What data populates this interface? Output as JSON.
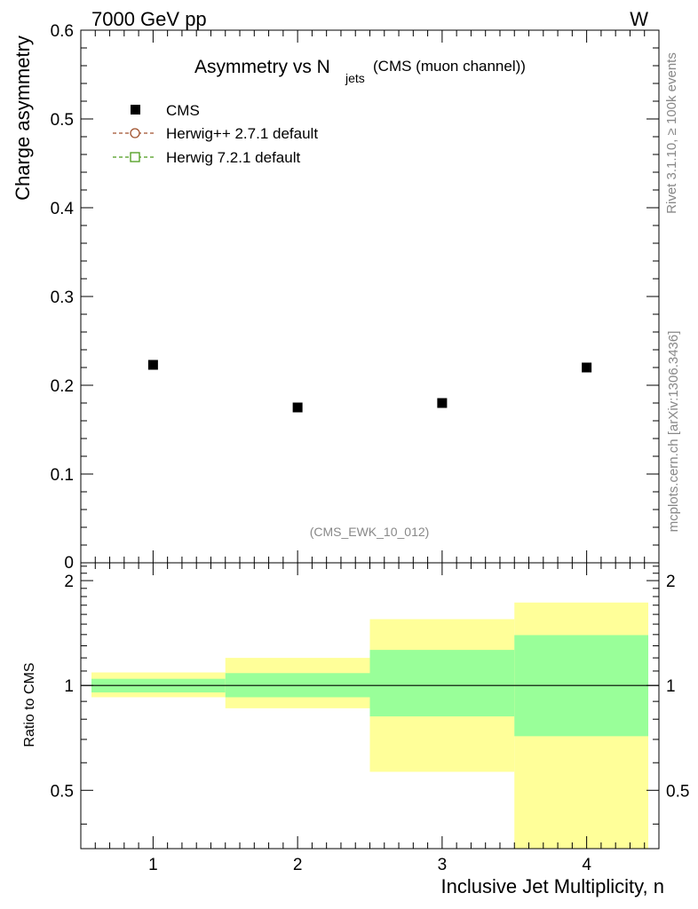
{
  "header": {
    "left": "7000 GeV pp",
    "right": "W"
  },
  "side_labels": {
    "rivet": "Rivet 3.1.10, ≥ 100k events",
    "mcplots": "mcplots.cern.ch [arXiv:1306.3436]"
  },
  "title": {
    "main": "Asymmetry vs N",
    "sub": "jets",
    "suffix": "(CMS (muon channel))"
  },
  "watermark": "(CMS_EWK_10_012)",
  "legend": [
    {
      "label": "CMS",
      "marker": "filled-square",
      "color": "#000000"
    },
    {
      "label": "Herwig++ 2.7.1 default",
      "marker": "open-circle-dashed",
      "color": "#a0522d"
    },
    {
      "label": "Herwig 7.2.1 default",
      "marker": "open-square-dashed",
      "color": "#4a9a1a"
    }
  ],
  "colors": {
    "band_inner": "#99ff99",
    "band_outer": "#ffff99",
    "axis": "#000000"
  },
  "chart_data": [
    {
      "type": "scatter",
      "ylabel": "Charge asymmetry",
      "xlim": [
        0.5,
        4.5
      ],
      "ylim": [
        0,
        0.6
      ],
      "yticks": [
        0.1,
        0.2,
        0.3,
        0.4,
        0.5,
        0.6
      ],
      "ytick_labels": [
        "0.1",
        "0.2",
        "0.3",
        "0.4",
        "0.5",
        "0.6"
      ],
      "bottom_tick_label": "0",
      "series": [
        {
          "name": "CMS",
          "x": [
            1,
            2,
            3,
            4
          ],
          "y": [
            0.223,
            0.175,
            0.18,
            0.22
          ]
        }
      ]
    },
    {
      "type": "area",
      "ylabel": "Ratio to CMS",
      "xlabel": "Inclusive Jet Multiplicity, n",
      "xlim": [
        0.5,
        4.5
      ],
      "ylim": [
        0.34,
        2.25
      ],
      "yticks": [
        0.5,
        1,
        2
      ],
      "ytick_labels": [
        "0.5",
        "1",
        "2"
      ],
      "xticks": [
        1,
        2,
        3,
        4
      ],
      "xtick_labels": [
        "1",
        "2",
        "3",
        "4"
      ],
      "reference_line": 1,
      "bins": [
        [
          0.5,
          1.5
        ],
        [
          1.5,
          2.5
        ],
        [
          2.5,
          3.5
        ],
        [
          3.5,
          4.5
        ]
      ],
      "inner_band": [
        [
          0.955,
          1.045
        ],
        [
          0.925,
          1.085
        ],
        [
          0.815,
          1.265
        ],
        [
          0.715,
          1.395
        ]
      ],
      "outer_band": [
        [
          0.925,
          1.09
        ],
        [
          0.86,
          1.2
        ],
        [
          0.565,
          1.55
        ],
        [
          0.34,
          1.73
        ]
      ]
    }
  ]
}
